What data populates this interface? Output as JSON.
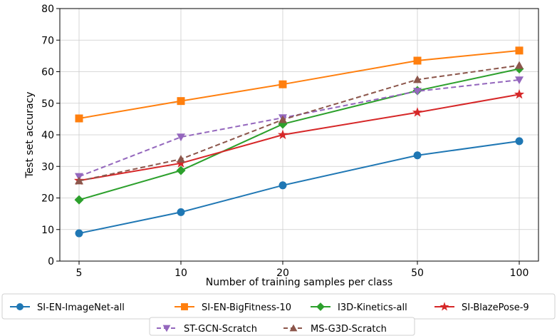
{
  "chart_data": {
    "type": "line",
    "xlabel": "Number of training samples per class",
    "ylabel": "Test set accuracy",
    "x_scale": "log",
    "x": [
      5,
      10,
      20,
      50,
      100
    ],
    "x_tick_labels": [
      "5",
      "10",
      "20",
      "50",
      "100"
    ],
    "ylim": [
      0,
      80
    ],
    "y_ticks": [
      0,
      10,
      20,
      30,
      40,
      50,
      60,
      70,
      80
    ],
    "grid": true,
    "legend_position": "bottom",
    "series": [
      {
        "name": "SI-EN-ImageNet-all",
        "color": "#1f77b4",
        "marker": "circle",
        "linestyle": "solid",
        "values": [
          8.8,
          15.5,
          24.0,
          33.5,
          38.0
        ]
      },
      {
        "name": "SI-EN-BigFitness-10",
        "color": "#ff7f0e",
        "marker": "square",
        "linestyle": "solid",
        "values": [
          45.2,
          50.7,
          56.0,
          63.5,
          66.7
        ]
      },
      {
        "name": "I3D-Kinetics-all",
        "color": "#2ca02c",
        "marker": "diamond",
        "linestyle": "solid",
        "values": [
          19.4,
          28.7,
          43.4,
          54.0,
          60.9
        ]
      },
      {
        "name": "SI-BlazePose-9",
        "color": "#d62728",
        "marker": "star",
        "linestyle": "solid",
        "values": [
          25.5,
          31.0,
          40.0,
          47.1,
          52.8
        ]
      },
      {
        "name": "ST-GCN-Scratch",
        "color": "#9467bd",
        "marker": "triangle-down",
        "linestyle": "dashed",
        "values": [
          26.8,
          39.3,
          45.4,
          53.8,
          57.4
        ]
      },
      {
        "name": "MS-G3D-Scratch",
        "color": "#8c564b",
        "marker": "triangle-up",
        "linestyle": "dashed",
        "values": [
          25.4,
          32.3,
          44.8,
          57.5,
          62.0
        ]
      }
    ]
  }
}
